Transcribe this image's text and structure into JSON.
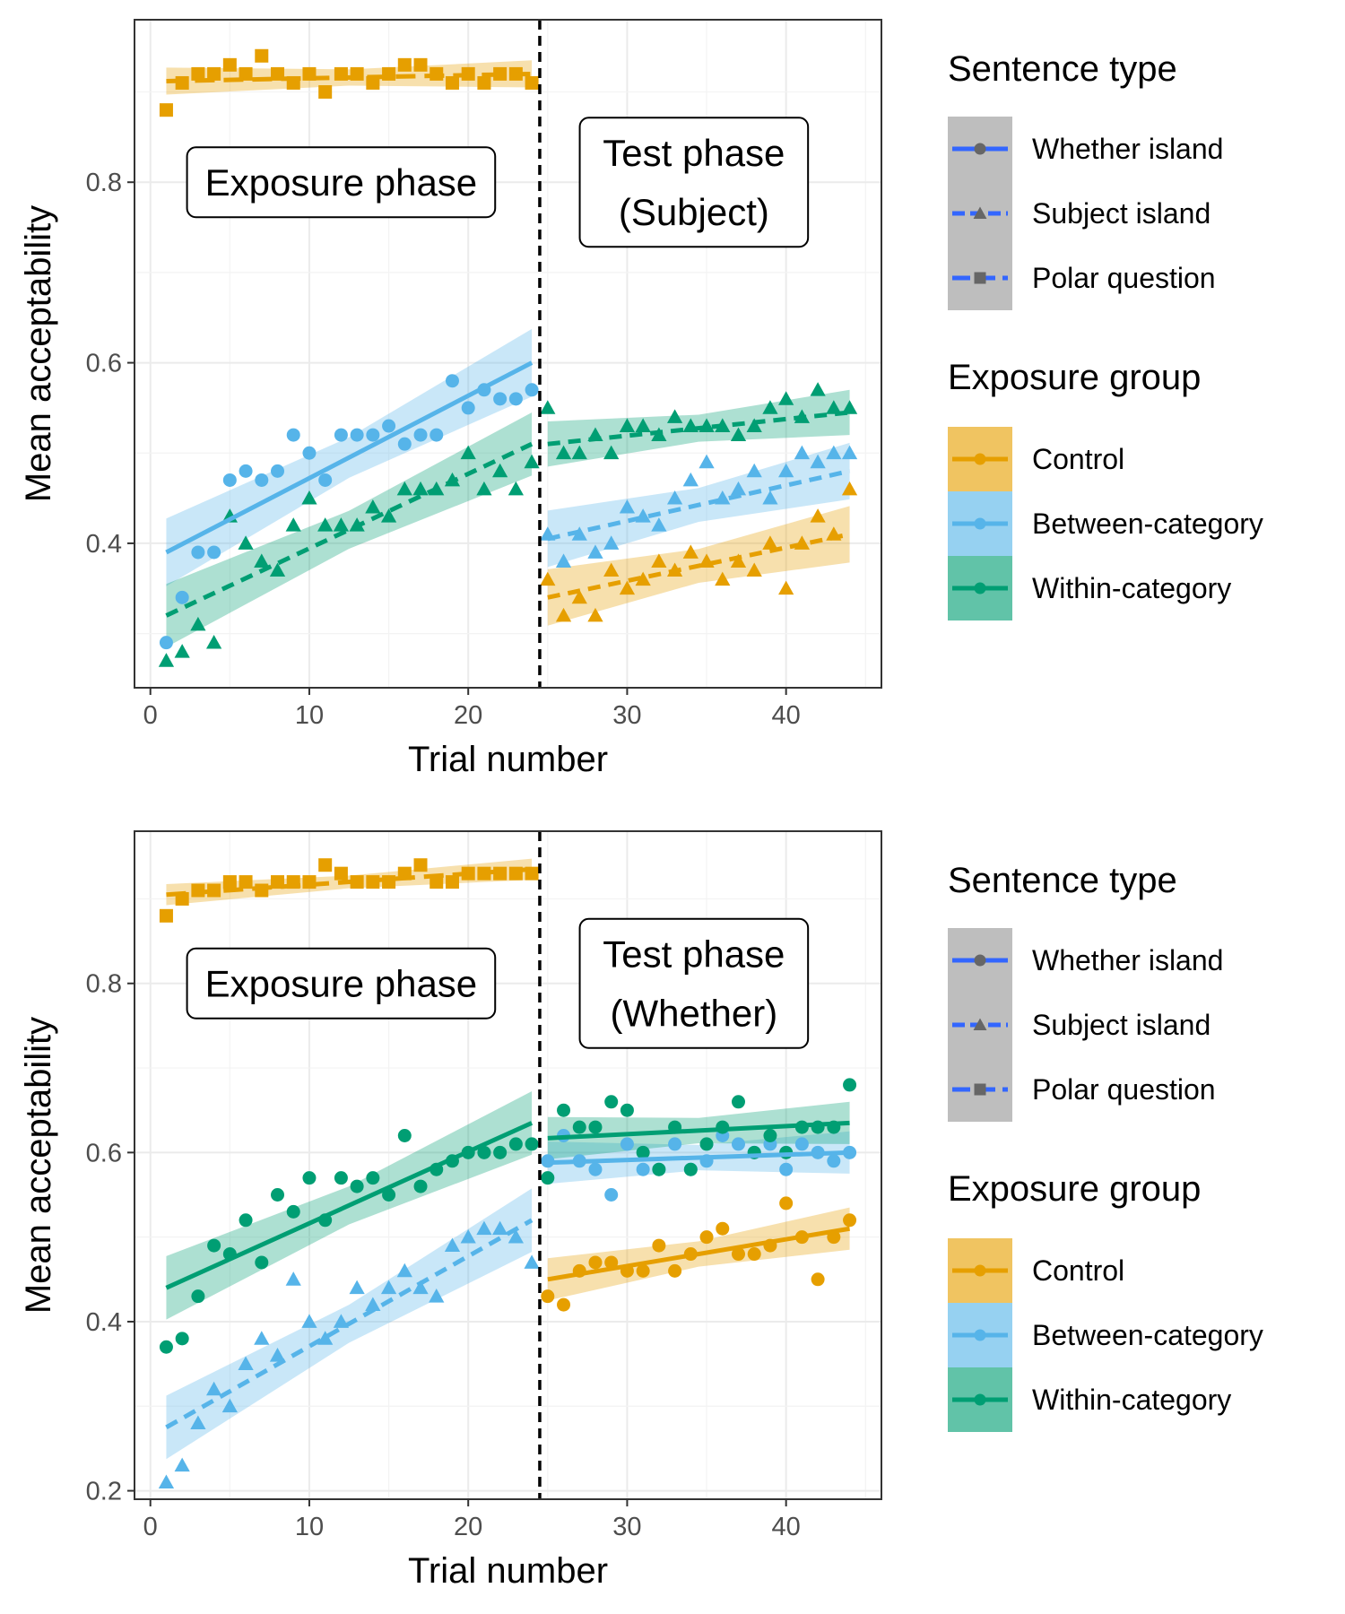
{
  "chart_data": [
    {
      "type": "scatter",
      "xlabel": "Trial number",
      "ylabel": "Mean acceptability",
      "xlim": [
        -1,
        46
      ],
      "ylim": [
        0.24,
        0.98
      ],
      "xticks": [
        0,
        10,
        20,
        30,
        40
      ],
      "yticks": [
        0.4,
        0.6,
        0.8
      ],
      "grid": true,
      "divider_x": 24.5,
      "annotations": [
        {
          "lines": [
            "Exposure phase"
          ],
          "x": 12,
          "y": 0.8
        },
        {
          "lines": [
            "Test phase",
            "(Subject)"
          ],
          "x": 34.2,
          "y": 0.8
        }
      ],
      "legend_position": "right",
      "series": [
        {
          "sentence_type": "Polar question",
          "group": "Control",
          "marker": "square",
          "line": "longdash",
          "color": "#E69F00",
          "x": [
            1,
            2,
            3,
            4,
            5,
            6,
            7,
            8,
            9,
            10,
            11,
            12,
            13,
            14,
            15,
            16,
            17,
            18,
            19,
            20,
            21,
            22,
            23,
            24
          ],
          "y": [
            0.88,
            0.91,
            0.92,
            0.92,
            0.93,
            0.92,
            0.94,
            0.92,
            0.91,
            0.92,
            0.9,
            0.92,
            0.92,
            0.91,
            0.92,
            0.93,
            0.93,
            0.92,
            0.91,
            0.92,
            0.91,
            0.92,
            0.92,
            0.91
          ],
          "fit": [
            0.912,
            0.92
          ],
          "band": 0.012
        },
        {
          "sentence_type": "Whether island",
          "group": "Between-category",
          "marker": "circle",
          "line": "solid",
          "color": "#56B4E9",
          "x": [
            1,
            2,
            3,
            4,
            5,
            6,
            7,
            8,
            9,
            10,
            11,
            12,
            13,
            14,
            15,
            16,
            17,
            18,
            19,
            20,
            21,
            22,
            23,
            24
          ],
          "y": [
            0.29,
            0.34,
            0.39,
            0.39,
            0.47,
            0.48,
            0.47,
            0.48,
            0.52,
            0.5,
            0.47,
            0.52,
            0.52,
            0.52,
            0.53,
            0.51,
            0.52,
            0.52,
            0.58,
            0.55,
            0.57,
            0.56,
            0.56,
            0.57
          ],
          "fit": [
            0.39,
            0.6
          ],
          "band": 0.03
        },
        {
          "sentence_type": "Subject island",
          "group": "Within-category",
          "marker": "triangle",
          "line": "dashed",
          "color": "#009E73",
          "x": [
            1,
            2,
            3,
            4,
            5,
            6,
            7,
            8,
            9,
            10,
            11,
            12,
            13,
            14,
            15,
            16,
            17,
            18,
            19,
            20,
            21,
            22,
            23,
            24
          ],
          "y": [
            0.27,
            0.28,
            0.31,
            0.29,
            0.43,
            0.4,
            0.38,
            0.37,
            0.42,
            0.45,
            0.42,
            0.42,
            0.42,
            0.44,
            0.43,
            0.46,
            0.46,
            0.46,
            0.47,
            0.5,
            0.46,
            0.48,
            0.46,
            0.49
          ],
          "fit": [
            0.32,
            0.51
          ],
          "band": 0.028
        },
        {
          "sentence_type": "Subject island",
          "group": "Control",
          "marker": "triangle",
          "line": "dashed",
          "color": "#E69F00",
          "x": [
            25,
            26,
            27,
            28,
            29,
            30,
            31,
            32,
            33,
            34,
            35,
            36,
            37,
            38,
            39,
            40,
            41,
            42,
            43,
            44
          ],
          "y": [
            0.36,
            0.32,
            0.34,
            0.32,
            0.37,
            0.35,
            0.36,
            0.38,
            0.37,
            0.39,
            0.38,
            0.36,
            0.38,
            0.37,
            0.4,
            0.35,
            0.4,
            0.43,
            0.41,
            0.46
          ],
          "fit": [
            0.34,
            0.41
          ],
          "band": 0.025
        },
        {
          "sentence_type": "Subject island",
          "group": "Between-category",
          "marker": "triangle",
          "line": "dashed",
          "color": "#56B4E9",
          "x": [
            25,
            26,
            27,
            28,
            29,
            30,
            31,
            32,
            33,
            34,
            35,
            36,
            37,
            38,
            39,
            40,
            41,
            42,
            43,
            44
          ],
          "y": [
            0.41,
            0.38,
            0.41,
            0.39,
            0.4,
            0.44,
            0.43,
            0.42,
            0.45,
            0.47,
            0.49,
            0.45,
            0.46,
            0.48,
            0.45,
            0.48,
            0.5,
            0.49,
            0.5,
            0.5
          ],
          "fit": [
            0.405,
            0.48
          ],
          "band": 0.025
        },
        {
          "sentence_type": "Subject island",
          "group": "Within-category",
          "marker": "triangle",
          "line": "dashed",
          "color": "#009E73",
          "x": [
            25,
            26,
            27,
            28,
            29,
            30,
            31,
            32,
            33,
            34,
            35,
            36,
            37,
            38,
            39,
            40,
            41,
            42,
            43,
            44
          ],
          "y": [
            0.55,
            0.5,
            0.5,
            0.52,
            0.5,
            0.53,
            0.53,
            0.52,
            0.54,
            0.53,
            0.53,
            0.53,
            0.52,
            0.53,
            0.55,
            0.56,
            0.54,
            0.57,
            0.55,
            0.55
          ],
          "fit": [
            0.51,
            0.545
          ],
          "band": 0.02
        }
      ]
    },
    {
      "type": "scatter",
      "xlabel": "Trial number",
      "ylabel": "Mean acceptability",
      "xlim": [
        -1,
        46
      ],
      "ylim": [
        0.19,
        0.98
      ],
      "xticks": [
        0,
        10,
        20,
        30,
        40
      ],
      "yticks": [
        0.2,
        0.4,
        0.6,
        0.8
      ],
      "grid": true,
      "divider_x": 24.5,
      "annotations": [
        {
          "lines": [
            "Exposure phase"
          ],
          "x": 12,
          "y": 0.8
        },
        {
          "lines": [
            "Test phase",
            "(Whether)"
          ],
          "x": 34.2,
          "y": 0.8
        }
      ],
      "legend_position": "right",
      "series": [
        {
          "sentence_type": "Polar question",
          "group": "Control",
          "marker": "square",
          "line": "longdash",
          "color": "#E69F00",
          "x": [
            1,
            2,
            3,
            4,
            5,
            6,
            7,
            8,
            9,
            10,
            11,
            12,
            13,
            14,
            15,
            16,
            17,
            18,
            19,
            20,
            21,
            22,
            23,
            24
          ],
          "y": [
            0.88,
            0.9,
            0.91,
            0.91,
            0.92,
            0.92,
            0.91,
            0.92,
            0.92,
            0.92,
            0.94,
            0.93,
            0.92,
            0.92,
            0.92,
            0.93,
            0.94,
            0.92,
            0.92,
            0.93,
            0.93,
            0.93,
            0.93,
            0.93
          ],
          "fit": [
            0.905,
            0.935
          ],
          "band": 0.01
        },
        {
          "sentence_type": "Whether island",
          "group": "Within-category",
          "marker": "circle",
          "line": "solid",
          "color": "#009E73",
          "x": [
            1,
            2,
            3,
            4,
            5,
            6,
            7,
            8,
            9,
            10,
            11,
            12,
            13,
            14,
            15,
            16,
            17,
            18,
            19,
            20,
            21,
            22,
            23,
            24
          ],
          "y": [
            0.37,
            0.38,
            0.43,
            0.49,
            0.48,
            0.52,
            0.47,
            0.55,
            0.53,
            0.57,
            0.52,
            0.57,
            0.56,
            0.57,
            0.55,
            0.62,
            0.56,
            0.58,
            0.59,
            0.6,
            0.6,
            0.6,
            0.61,
            0.61
          ],
          "fit": [
            0.44,
            0.635
          ],
          "band": 0.03
        },
        {
          "sentence_type": "Subject island",
          "group": "Between-category",
          "marker": "triangle",
          "line": "dashed",
          "color": "#56B4E9",
          "x": [
            1,
            2,
            3,
            4,
            5,
            6,
            7,
            8,
            9,
            10,
            11,
            12,
            13,
            14,
            15,
            16,
            17,
            18,
            19,
            20,
            21,
            22,
            23,
            24
          ],
          "y": [
            0.21,
            0.23,
            0.28,
            0.32,
            0.3,
            0.35,
            0.38,
            0.36,
            0.45,
            0.4,
            0.38,
            0.4,
            0.44,
            0.42,
            0.44,
            0.46,
            0.44,
            0.43,
            0.49,
            0.5,
            0.51,
            0.51,
            0.5,
            0.47
          ],
          "fit": [
            0.275,
            0.52
          ],
          "band": 0.03
        },
        {
          "sentence_type": "Whether island",
          "group": "Control",
          "marker": "circle",
          "line": "solid",
          "color": "#E69F00",
          "x": [
            25,
            26,
            27,
            28,
            29,
            30,
            31,
            32,
            33,
            34,
            35,
            36,
            37,
            38,
            39,
            40,
            41,
            42,
            43,
            44
          ],
          "y": [
            0.43,
            0.42,
            0.46,
            0.47,
            0.47,
            0.46,
            0.46,
            0.49,
            0.46,
            0.48,
            0.5,
            0.51,
            0.48,
            0.48,
            0.49,
            0.54,
            0.5,
            0.45,
            0.5,
            0.52
          ],
          "fit": [
            0.45,
            0.51
          ],
          "band": 0.02
        },
        {
          "sentence_type": "Whether island",
          "group": "Between-category",
          "marker": "circle",
          "line": "solid",
          "color": "#56B4E9",
          "x": [
            25,
            26,
            27,
            28,
            29,
            30,
            31,
            32,
            33,
            34,
            35,
            36,
            37,
            38,
            39,
            40,
            41,
            42,
            43,
            44
          ],
          "y": [
            0.59,
            0.62,
            0.59,
            0.58,
            0.55,
            0.61,
            0.58,
            0.58,
            0.61,
            0.58,
            0.59,
            0.62,
            0.61,
            0.6,
            0.61,
            0.58,
            0.61,
            0.6,
            0.59,
            0.6
          ],
          "fit": [
            0.588,
            0.6
          ],
          "band": 0.02
        },
        {
          "sentence_type": "Whether island",
          "group": "Within-category",
          "marker": "circle",
          "line": "solid",
          "color": "#009E73",
          "x": [
            25,
            26,
            27,
            28,
            29,
            30,
            31,
            32,
            33,
            34,
            35,
            36,
            37,
            38,
            39,
            40,
            41,
            42,
            43,
            44
          ],
          "y": [
            0.57,
            0.65,
            0.63,
            0.63,
            0.66,
            0.65,
            0.6,
            0.58,
            0.63,
            0.58,
            0.61,
            0.63,
            0.66,
            0.6,
            0.62,
            0.6,
            0.63,
            0.63,
            0.63,
            0.68
          ],
          "fit": [
            0.617,
            0.635
          ],
          "band": 0.02
        }
      ]
    }
  ],
  "legend": {
    "sentence_type": {
      "title": "Sentence type",
      "items": [
        {
          "label": "Whether island",
          "marker": "circle",
          "line": "solid"
        },
        {
          "label": "Subject island",
          "marker": "triangle",
          "line": "dashed"
        },
        {
          "label": "Polar question",
          "marker": "square",
          "line": "longdash"
        }
      ]
    },
    "exposure_group": {
      "title": "Exposure group",
      "items": [
        {
          "label": "Control",
          "color": "#E69F00"
        },
        {
          "label": "Between-category",
          "color": "#56B4E9"
        },
        {
          "label": "Within-category",
          "color": "#009E73"
        }
      ]
    },
    "legend_line_color": "#3366FF",
    "legend_marker_color": "#666666"
  }
}
